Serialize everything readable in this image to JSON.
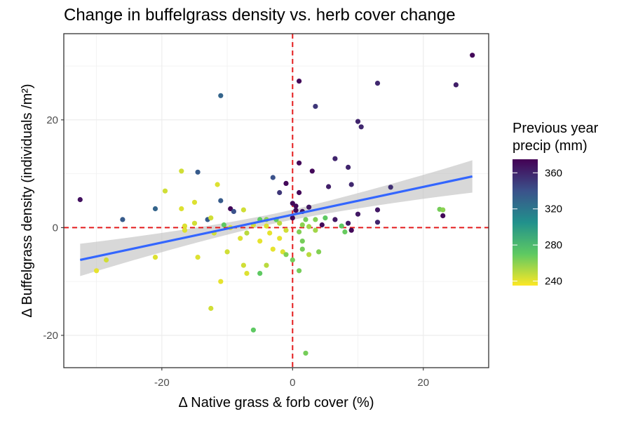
{
  "title": "Change in buffelgrass density vs. herb cover change",
  "chart_data": {
    "type": "scatter",
    "title": "Change in buffelgrass density vs. herb cover change",
    "xlabel": "Δ Native grass & forb cover (%)",
    "ylabel": "Δ Buffelgrass density (individuals /m²)",
    "xlim": [
      -35,
      30
    ],
    "ylim": [
      -26,
      36
    ],
    "x_ticks": [
      -20,
      0,
      20
    ],
    "y_ticks": [
      -20,
      0,
      20
    ],
    "x_tick_labels": [
      "-20",
      "0",
      "20"
    ],
    "y_tick_labels": [
      "-20",
      "0",
      "20"
    ],
    "grid": true,
    "reference_lines": {
      "x": 0,
      "y": 0,
      "color": "#e41a1c",
      "style": "dashed"
    },
    "trend_line": {
      "x": [
        -32.5,
        27.5
      ],
      "y": [
        -6.0,
        9.5
      ],
      "color": "#3366ff",
      "confidence_band": true
    },
    "color_scale": {
      "name": "viridis",
      "title": "Previous year\nprecip (mm)",
      "title_lines": [
        "Previous year",
        "precip (mm)"
      ],
      "range": [
        235,
        375
      ],
      "ticks": [
        240,
        280,
        320,
        360
      ],
      "tick_labels": [
        "240",
        "280",
        "320",
        "360"
      ],
      "legend_position": "right"
    },
    "points": [
      {
        "x": 27.5,
        "y": 32.0,
        "precip": 372
      },
      {
        "x": 25.0,
        "y": 26.5,
        "precip": 362
      },
      {
        "x": 13.0,
        "y": 26.8,
        "precip": 358
      },
      {
        "x": 1.0,
        "y": 27.2,
        "precip": 372
      },
      {
        "x": 3.5,
        "y": 22.5,
        "precip": 352
      },
      {
        "x": -11.0,
        "y": 24.5,
        "precip": 330
      },
      {
        "x": 10.0,
        "y": 19.7,
        "precip": 360
      },
      {
        "x": 10.5,
        "y": 18.7,
        "precip": 358
      },
      {
        "x": 1.0,
        "y": 12.0,
        "precip": 372
      },
      {
        "x": 6.5,
        "y": 12.8,
        "precip": 360
      },
      {
        "x": 8.5,
        "y": 11.2,
        "precip": 360
      },
      {
        "x": 3.0,
        "y": 10.5,
        "precip": 372
      },
      {
        "x": -3.0,
        "y": 9.3,
        "precip": 340
      },
      {
        "x": -1.0,
        "y": 8.2,
        "precip": 372
      },
      {
        "x": -14.5,
        "y": 10.3,
        "precip": 335
      },
      {
        "x": -17.0,
        "y": 10.5,
        "precip": 245
      },
      {
        "x": -11.5,
        "y": 8.0,
        "precip": 242
      },
      {
        "x": 5.5,
        "y": 7.6,
        "precip": 362
      },
      {
        "x": 9.0,
        "y": 8.0,
        "precip": 358
      },
      {
        "x": 15.0,
        "y": 7.5,
        "precip": 355
      },
      {
        "x": -2.0,
        "y": 6.5,
        "precip": 352
      },
      {
        "x": 1.0,
        "y": 6.5,
        "precip": 372
      },
      {
        "x": -19.5,
        "y": 6.8,
        "precip": 245
      },
      {
        "x": -32.5,
        "y": 5.2,
        "precip": 368
      },
      {
        "x": -11.0,
        "y": 5.0,
        "precip": 335
      },
      {
        "x": 0.0,
        "y": 4.5,
        "precip": 372
      },
      {
        "x": 0.5,
        "y": 4.0,
        "precip": 372
      },
      {
        "x": 2.5,
        "y": 3.8,
        "precip": 365
      },
      {
        "x": -21.0,
        "y": 3.5,
        "precip": 330
      },
      {
        "x": -17.0,
        "y": 3.5,
        "precip": 242
      },
      {
        "x": -9.5,
        "y": 3.5,
        "precip": 372
      },
      {
        "x": -9.0,
        "y": 3.0,
        "precip": 340
      },
      {
        "x": -7.5,
        "y": 3.3,
        "precip": 245
      },
      {
        "x": -15.0,
        "y": 4.7,
        "precip": 242
      },
      {
        "x": 0.5,
        "y": 3.2,
        "precip": 372
      },
      {
        "x": 1.5,
        "y": 3.0,
        "precip": 365
      },
      {
        "x": 10.0,
        "y": 2.5,
        "precip": 365
      },
      {
        "x": 13.0,
        "y": 3.3,
        "precip": 365
      },
      {
        "x": 22.5,
        "y": 3.4,
        "precip": 265
      },
      {
        "x": 23.0,
        "y": 3.3,
        "precip": 260
      },
      {
        "x": 23.0,
        "y": 2.2,
        "precip": 372
      },
      {
        "x": -26.0,
        "y": 1.5,
        "precip": 335
      },
      {
        "x": -13.0,
        "y": 1.5,
        "precip": 335
      },
      {
        "x": -12.5,
        "y": 1.8,
        "precip": 245
      },
      {
        "x": -5.0,
        "y": 1.5,
        "precip": 270
      },
      {
        "x": -4.0,
        "y": 1.5,
        "precip": 260
      },
      {
        "x": -2.5,
        "y": 1.5,
        "precip": 270
      },
      {
        "x": 0.0,
        "y": 1.8,
        "precip": 372
      },
      {
        "x": 2.0,
        "y": 1.5,
        "precip": 265
      },
      {
        "x": 3.5,
        "y": 1.5,
        "precip": 262
      },
      {
        "x": 5.0,
        "y": 1.8,
        "precip": 270
      },
      {
        "x": 6.5,
        "y": 1.5,
        "precip": 365
      },
      {
        "x": 8.5,
        "y": 0.8,
        "precip": 365
      },
      {
        "x": 13.0,
        "y": 1.0,
        "precip": 360
      },
      {
        "x": -16.5,
        "y": 0.3,
        "precip": 242
      },
      {
        "x": -15.0,
        "y": 0.8,
        "precip": 245
      },
      {
        "x": -10.5,
        "y": 0.5,
        "precip": 270
      },
      {
        "x": -9.5,
        "y": 0.0,
        "precip": 242
      },
      {
        "x": -6.0,
        "y": 0.5,
        "precip": 245
      },
      {
        "x": -4.0,
        "y": 0.3,
        "precip": 242
      },
      {
        "x": -2.0,
        "y": 0.8,
        "precip": 250
      },
      {
        "x": 1.5,
        "y": 0.5,
        "precip": 260
      },
      {
        "x": 2.5,
        "y": 0.2,
        "precip": 255
      },
      {
        "x": 4.5,
        "y": 0.5,
        "precip": 372
      },
      {
        "x": 7.5,
        "y": 0.3,
        "precip": 270
      },
      {
        "x": -16.5,
        "y": -0.5,
        "precip": 242
      },
      {
        "x": -12.0,
        "y": -1.0,
        "precip": 245
      },
      {
        "x": -7.0,
        "y": -1.0,
        "precip": 250
      },
      {
        "x": -3.5,
        "y": -1.0,
        "precip": 240
      },
      {
        "x": -1.0,
        "y": -0.5,
        "precip": 245
      },
      {
        "x": 1.0,
        "y": -0.8,
        "precip": 262
      },
      {
        "x": 3.5,
        "y": -0.5,
        "precip": 255
      },
      {
        "x": 8.0,
        "y": -0.8,
        "precip": 268
      },
      {
        "x": 9.0,
        "y": -0.5,
        "precip": 372
      },
      {
        "x": -8.0,
        "y": -2.0,
        "precip": 242
      },
      {
        "x": -5.0,
        "y": -2.5,
        "precip": 240
      },
      {
        "x": -2.0,
        "y": -2.0,
        "precip": 240
      },
      {
        "x": 1.5,
        "y": -2.5,
        "precip": 265
      },
      {
        "x": -14.5,
        "y": -5.5,
        "precip": 242
      },
      {
        "x": -10.0,
        "y": -4.5,
        "precip": 245
      },
      {
        "x": -3.0,
        "y": -4.0,
        "precip": 240
      },
      {
        "x": -1.5,
        "y": -4.5,
        "precip": 242
      },
      {
        "x": 1.5,
        "y": -4.0,
        "precip": 265
      },
      {
        "x": 2.5,
        "y": -5.0,
        "precip": 250
      },
      {
        "x": 4.0,
        "y": -4.5,
        "precip": 262
      },
      {
        "x": 0.0,
        "y": -6.0,
        "precip": 265
      },
      {
        "x": -1.0,
        "y": -5.0,
        "precip": 262
      },
      {
        "x": -21.0,
        "y": -5.5,
        "precip": 242
      },
      {
        "x": -28.5,
        "y": -6.0,
        "precip": 245
      },
      {
        "x": -30.0,
        "y": -8.0,
        "precip": 240
      },
      {
        "x": -7.5,
        "y": -7.0,
        "precip": 245
      },
      {
        "x": -7.0,
        "y": -8.5,
        "precip": 242
      },
      {
        "x": -4.0,
        "y": -7.0,
        "precip": 250
      },
      {
        "x": -5.0,
        "y": -8.5,
        "precip": 270
      },
      {
        "x": 1.0,
        "y": -8.0,
        "precip": 265
      },
      {
        "x": -11.0,
        "y": -10.0,
        "precip": 240
      },
      {
        "x": -12.5,
        "y": -15.0,
        "precip": 245
      },
      {
        "x": -6.0,
        "y": -19.0,
        "precip": 270
      },
      {
        "x": 2.0,
        "y": -23.3,
        "precip": 265
      }
    ]
  }
}
